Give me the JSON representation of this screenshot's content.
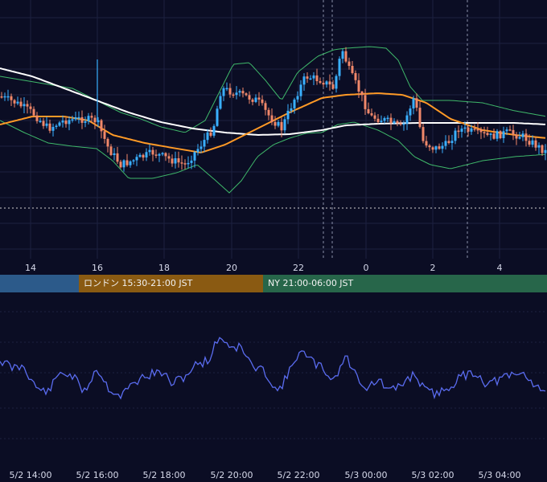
{
  "chart_data": {
    "type": "candlestick",
    "title": "",
    "top_axis_labels": [
      "14",
      "16",
      "18",
      "20",
      "22",
      "0",
      "2",
      "4"
    ],
    "sessions": [
      {
        "name": "",
        "color": "#2c5a8a"
      },
      {
        "name": "ロンドン 15:30-21:00 JST",
        "color": "#8a5a12"
      },
      {
        "name": "NY 21:00-06:00 JST",
        "color": "#27664a"
      }
    ],
    "bottom_axis_labels": [
      "5/2 14:00",
      "5/2 16:00",
      "5/2 18:00",
      "5/2 20:00",
      "5/2 22:00",
      "5/3 00:00",
      "5/3 02:00",
      "5/3 04:00"
    ],
    "series": [
      {
        "name": "",
        "kind": "candles",
        "up_color": "#3ab0ff",
        "down_color": "#f0886a"
      },
      {
        "name": "",
        "kind": "moving-average",
        "color": "#ff9a26"
      },
      {
        "name": "",
        "kind": "moving-average",
        "color": "#ffffff"
      },
      {
        "name": "",
        "kind": "bollinger-bands",
        "color": "#3fb86a"
      },
      {
        "name": "",
        "kind": "oscillator",
        "color": "#5a6cf0"
      }
    ],
    "grid": true
  }
}
